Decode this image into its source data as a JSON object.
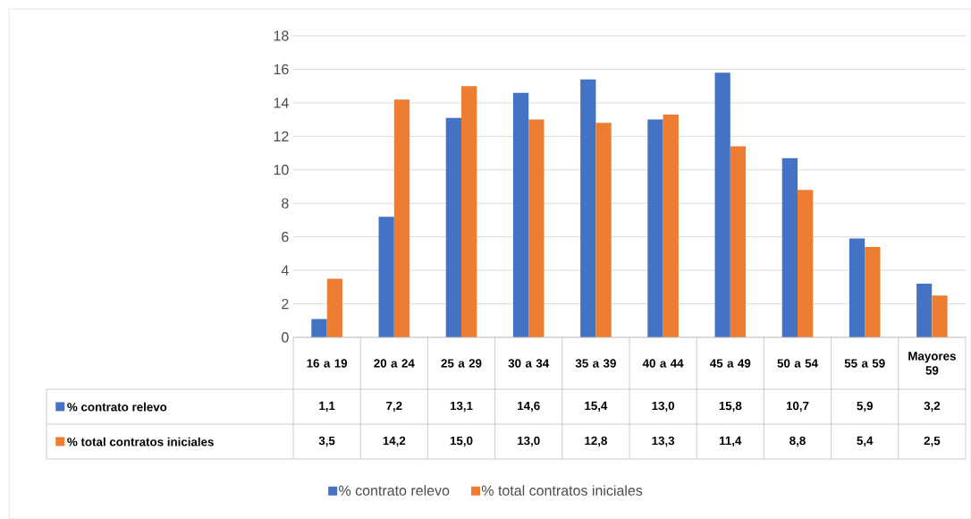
{
  "chart_data": {
    "type": "bar",
    "categories": [
      "16 a 19",
      "20 a 24",
      "25 a 29",
      "30 a 34",
      "35 a 39",
      "40 a 44",
      "45 a 49",
      "50 a 54",
      "55 a 59",
      "Mayores 59"
    ],
    "series": [
      {
        "name": "% contrato relevo",
        "color": "#4472c4",
        "values": [
          1.1,
          7.2,
          13.1,
          14.6,
          15.4,
          13.0,
          15.8,
          10.7,
          5.9,
          3.2
        ],
        "value_labels": [
          "1,1",
          "7,2",
          "13,1",
          "14,6",
          "15,4",
          "13,0",
          "15,8",
          "10,7",
          "5,9",
          "3,2"
        ]
      },
      {
        "name": "% total contratos iniciales",
        "color": "#ed7d31",
        "values": [
          3.5,
          14.2,
          15.0,
          13.0,
          12.8,
          13.3,
          11.4,
          8.8,
          5.4,
          2.5
        ],
        "value_labels": [
          "3,5",
          "14,2",
          "15,0",
          "13,0",
          "12,8",
          "13,3",
          "11,4",
          "8,8",
          "5,4",
          "2,5"
        ]
      }
    ],
    "ylim": [
      0,
      18
    ],
    "yticks": [
      0,
      2,
      4,
      6,
      8,
      10,
      12,
      14,
      16,
      18
    ],
    "grid": "y",
    "legend": "bottom"
  }
}
